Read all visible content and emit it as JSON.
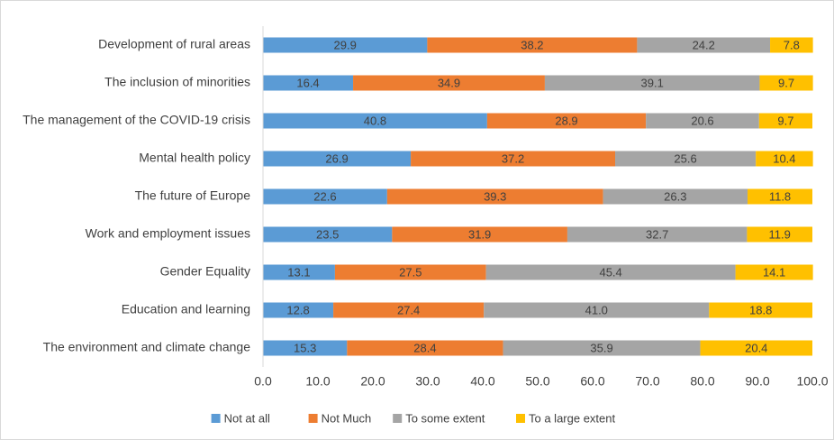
{
  "chart_data": {
    "type": "stacked-barh",
    "categories": [
      "Development of rural areas",
      "The inclusion of minorities",
      "The management of the COVID-19 crisis",
      "Mental health policy",
      "The future of Europe",
      "Work and employment issues",
      "Gender Equality",
      "Education and learning",
      "The environment and climate change"
    ],
    "series": [
      {
        "name": "Not at all",
        "color": "#5b9bd5",
        "values": [
          29.9,
          16.4,
          40.8,
          26.9,
          22.6,
          23.5,
          13.1,
          12.8,
          15.3
        ],
        "value_labels": [
          "29.9",
          "16.4",
          "40.8",
          "26.9",
          "22.6",
          "23.5",
          "13.1",
          "12.8",
          "15.3"
        ]
      },
      {
        "name": "Not Much",
        "color": "#ed7d31",
        "values": [
          38.2,
          34.9,
          28.9,
          37.2,
          39.3,
          31.9,
          27.5,
          27.4,
          28.4
        ],
        "value_labels": [
          "38.2",
          "34.9",
          "28.9",
          "37.2",
          "39.3",
          "31.9",
          "27.5",
          "27.4",
          "28.4"
        ]
      },
      {
        "name": "To some extent",
        "color": "#a5a5a5",
        "values": [
          24.2,
          39.1,
          20.6,
          25.6,
          26.3,
          32.7,
          45.4,
          41.0,
          35.9
        ],
        "value_labels": [
          "24.2",
          "39.1",
          "20.6",
          "25.6",
          "26.3",
          "32.7",
          "45.4",
          "41.0",
          "35.9"
        ]
      },
      {
        "name": "To a large extent",
        "color": "#ffc000",
        "values": [
          7.8,
          9.7,
          9.7,
          10.4,
          11.8,
          11.9,
          14.1,
          18.8,
          20.4
        ],
        "value_labels": [
          "7.8",
          "9.7",
          "9.7",
          "10.4",
          "11.8",
          "11.9",
          "14.1",
          "18.8",
          "20.4"
        ]
      }
    ],
    "xlim": [
      0,
      100
    ],
    "xticks": [
      {
        "value": 0,
        "label": "0.0"
      },
      {
        "value": 10,
        "label": "10.0"
      },
      {
        "value": 20,
        "label": "20.0"
      },
      {
        "value": 30,
        "label": "30.0"
      },
      {
        "value": 40,
        "label": "40.0"
      },
      {
        "value": 50,
        "label": "50.0"
      },
      {
        "value": 60,
        "label": "60.0"
      },
      {
        "value": 70,
        "label": "70.0"
      },
      {
        "value": 80,
        "label": "80.0"
      },
      {
        "value": 90,
        "label": "90.0"
      },
      {
        "value": 100,
        "label": "100.0"
      }
    ],
    "grid": false,
    "legend": "bottom"
  }
}
